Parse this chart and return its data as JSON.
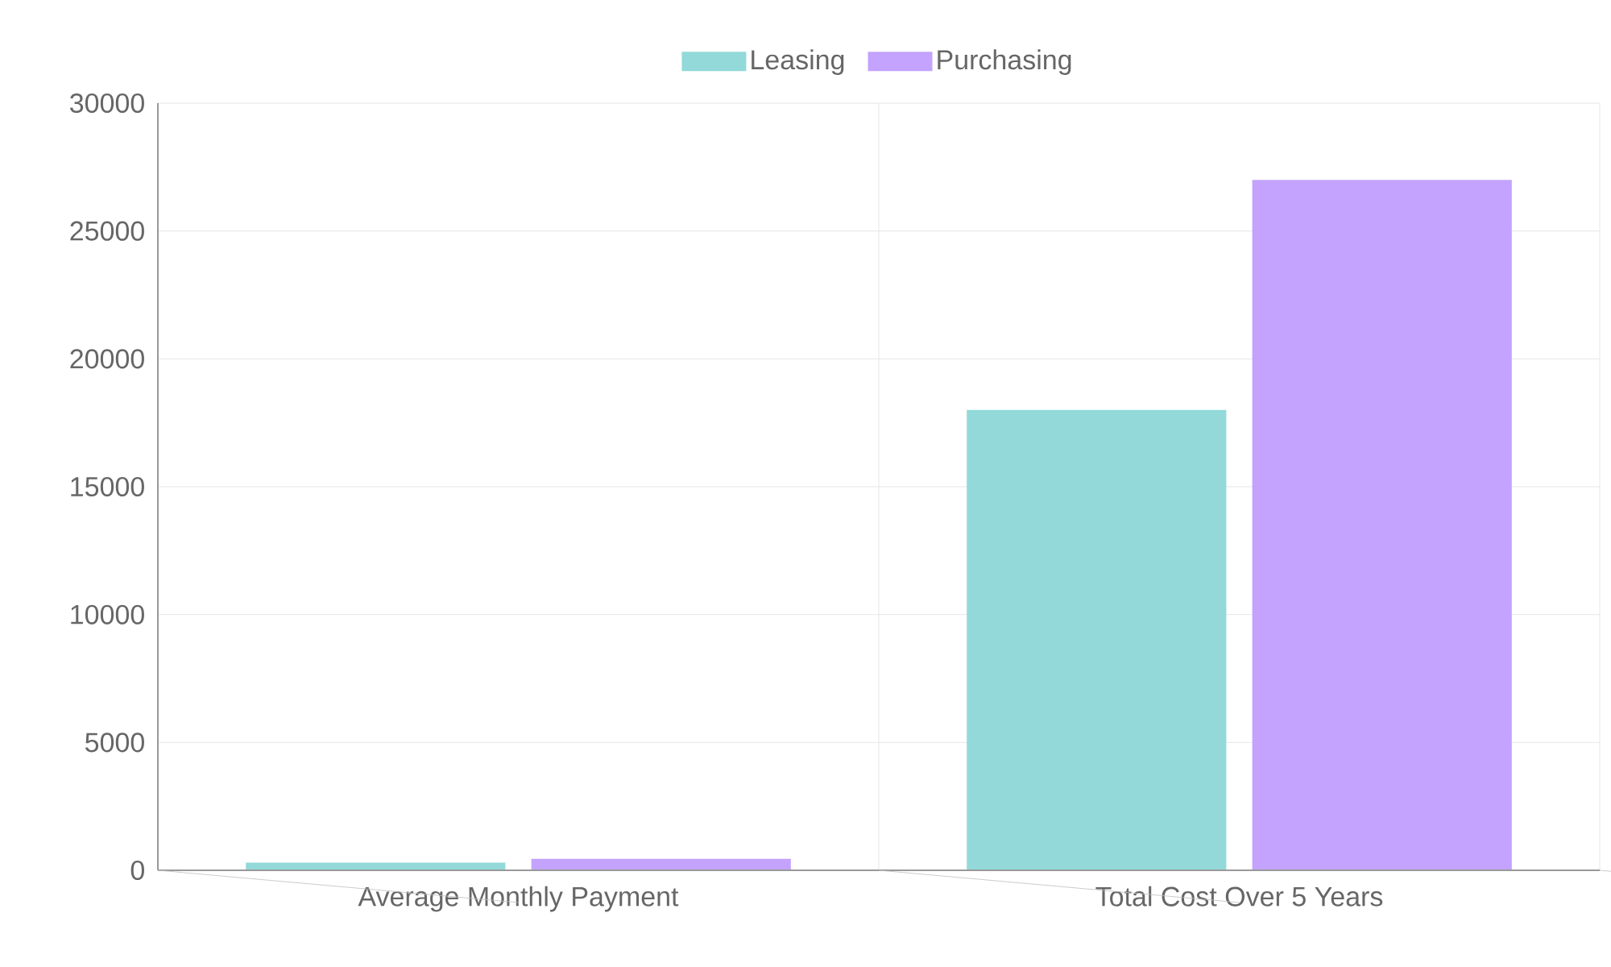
{
  "chart_data": {
    "type": "bar",
    "categories": [
      "Average Monthly Payment",
      "Total Cost Over 5 Years"
    ],
    "series": [
      {
        "name": "Leasing",
        "color": "#93d9d9",
        "values": [
          300,
          18000
        ]
      },
      {
        "name": "Purchasing",
        "color": "#c3a3fd",
        "values": [
          450,
          27000
        ]
      }
    ],
    "ylim": [
      0,
      30000
    ],
    "yticks": [
      0,
      5000,
      10000,
      15000,
      20000,
      25000,
      30000
    ],
    "grid": true,
    "legend": "top"
  }
}
